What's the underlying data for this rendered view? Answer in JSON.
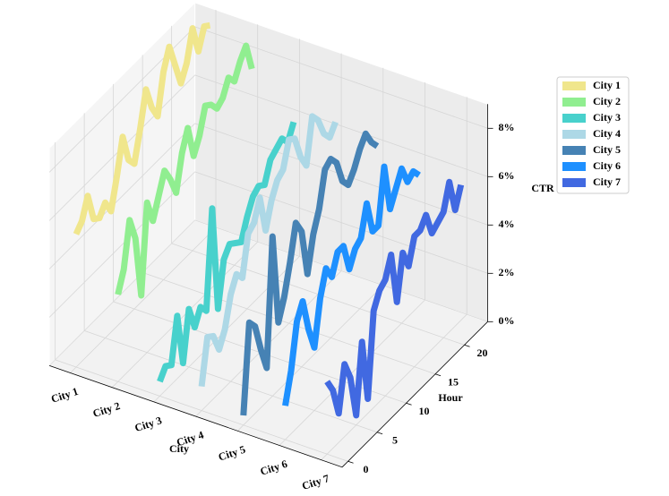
{
  "chart_data": {
    "type": "line3d",
    "category_label": "City",
    "x_label": "Hour",
    "y_label": "CTR",
    "categories": [
      "City 1",
      "City 2",
      "City 3",
      "City 4",
      "City 5",
      "City 6",
      "City 7"
    ],
    "x": [
      0,
      1,
      2,
      3,
      4,
      5,
      6,
      7,
      8,
      9,
      10,
      11,
      12,
      13,
      14,
      15,
      16,
      17,
      18,
      19,
      20,
      21,
      22,
      23
    ],
    "xlim": [
      -1,
      24
    ],
    "xticks": [
      0,
      5,
      10,
      15,
      20
    ],
    "ylim": [
      0,
      9
    ],
    "yticks": [
      {
        "value": 0,
        "label": "0%"
      },
      {
        "value": 2,
        "label": "2%"
      },
      {
        "value": 4,
        "label": "4%"
      },
      {
        "value": 6,
        "label": "6%"
      },
      {
        "value": 8,
        "label": "8%"
      }
    ],
    "legend": "upper right",
    "series": [
      {
        "name": "City 1",
        "color": "#f0e68c",
        "values": [
          5.5,
          5.8,
          6.6,
          5.4,
          5.2,
          5.6,
          5.0,
          6.2,
          7.6,
          6.4,
          6.0,
          7.2,
          8.6,
          7.6,
          7.0,
          8.6,
          9.4,
          8.4,
          7.4,
          8.0,
          9.2,
          8.0,
          8.8,
          8.6
        ]
      },
      {
        "name": "City 2",
        "color": "#90ee90",
        "values": [
          3.6,
          4.4,
          6.2,
          5.2,
          2.6,
          6.2,
          5.2,
          6.0,
          6.8,
          6.2,
          5.4,
          6.8,
          7.6,
          6.2,
          6.8,
          7.8,
          7.6,
          7.2,
          7.4,
          8.0,
          7.6,
          8.2,
          8.6,
          7.4
        ]
      },
      {
        "name": "City 3",
        "color": "#48d1cc",
        "values": [
          0.6,
          1.0,
          0.8,
          2.6,
          0.4,
          2.4,
          1.4,
          2.0,
          1.6,
          5.6,
          1.2,
          3.0,
          3.4,
          3.2,
          3.0,
          3.8,
          4.4,
          4.6,
          4.4,
          5.2,
          5.4,
          5.6,
          5.2,
          5.8
        ]
      },
      {
        "name": "City 4",
        "color": "#add8e6",
        "values": [
          1.0,
          2.8,
          2.6,
          1.8,
          2.4,
          3.6,
          4.2,
          3.8,
          5.4,
          5.6,
          6.4,
          4.8,
          5.8,
          6.4,
          6.6,
          7.6,
          7.4,
          6.4,
          5.8,
          7.6,
          7.2,
          6.4,
          6.0,
          6.4
        ]
      },
      {
        "name": "City 5",
        "color": "#4682b4",
        "values": [
          0.4,
          4.0,
          3.6,
          2.4,
          1.4,
          6.6,
          2.8,
          3.6,
          4.8,
          6.2,
          5.6,
          3.6,
          5.0,
          5.8,
          7.2,
          7.4,
          7.0,
          6.0,
          5.6,
          6.0,
          6.6,
          7.0,
          6.4,
          6.0
        ]
      },
      {
        "name": "City 6",
        "color": "#1e90ff",
        "values": [
          1.4,
          2.6,
          4.4,
          5.0,
          3.6,
          2.6,
          4.4,
          5.4,
          4.8,
          5.6,
          5.6,
          4.4,
          5.0,
          5.2,
          6.4,
          5.0,
          5.0,
          7.2,
          5.2,
          5.8,
          6.4,
          5.6,
          5.8,
          5.4
        ]
      },
      {
        "name": "City 7",
        "color": "#4169e1",
        "values": [
          3.0,
          2.4,
          1.2,
          3.0,
          2.2,
          0.4,
          3.2,
          0.6,
          4.0,
          4.6,
          4.8,
          5.6,
          3.4,
          5.2,
          4.4,
          5.4,
          5.4,
          5.8,
          4.8,
          5.0,
          5.2,
          6.2,
          4.8,
          5.6
        ]
      }
    ]
  }
}
